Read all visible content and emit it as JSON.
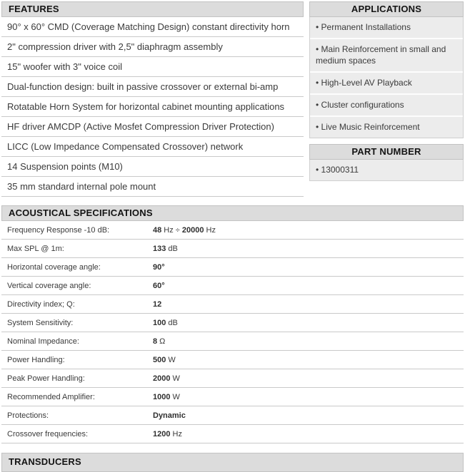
{
  "ui": {
    "bullet_glyph": "•",
    "colors": {
      "header_bg": "#dcdcdc",
      "header_border": "#c2c2c2",
      "panel_bg": "#ececec",
      "row_separator": "#c9c9c9",
      "text": "#3a3a3a"
    }
  },
  "features": {
    "title": "FEATURES",
    "items": [
      "90° x 60° CMD (Coverage Matching Design) constant directivity horn",
      "2\" compression driver with 2,5\" diaphragm assembly",
      "15\" woofer with 3\" voice coil",
      "Dual-function design: built in passive crossover or external bi-amp",
      "Rotatable Horn System for horizontal cabinet mounting applications",
      "HF driver AMCDP (Active Mosfet Compression Driver Protection)",
      "LICC (Low Impedance Compensated Crossover) network",
      "14 Suspension points (M10)",
      "35 mm standard internal pole mount"
    ]
  },
  "applications": {
    "title": "APPLICATIONS",
    "items": [
      "Permanent Installations",
      "Main Reinforcement in small and medium spaces",
      "High-Level AV Playback",
      "Cluster configurations",
      "Live Music Reinforcement"
    ]
  },
  "part_number": {
    "title": "PART NUMBER",
    "items": [
      "13000311"
    ]
  },
  "acoustical_specifications": {
    "title": "ACOUSTICAL SPECIFICATIONS",
    "rows": [
      {
        "label": "Frequency Response -10 dB:",
        "value": [
          {
            "t": "48",
            "b": true
          },
          {
            "t": " Hz ÷ ",
            "b": false
          },
          {
            "t": "20000",
            "b": true
          },
          {
            "t": " Hz",
            "b": false
          }
        ]
      },
      {
        "label": "Max SPL @ 1m:",
        "value": [
          {
            "t": "133",
            "b": true
          },
          {
            "t": " dB",
            "b": false
          }
        ]
      },
      {
        "label": "Horizontal coverage angle:",
        "value": [
          {
            "t": "90°",
            "b": true
          }
        ]
      },
      {
        "label": "Vertical coverage angle:",
        "value": [
          {
            "t": "60°",
            "b": true
          }
        ]
      },
      {
        "label": "Directivity index; Q:",
        "value": [
          {
            "t": "12",
            "b": true
          }
        ]
      },
      {
        "label": "System Sensitivity:",
        "value": [
          {
            "t": "100",
            "b": true
          },
          {
            "t": " dB",
            "b": false
          }
        ]
      },
      {
        "label": "Nominal Impedance:",
        "value": [
          {
            "t": "8",
            "b": true
          },
          {
            "t": " Ω",
            "b": false
          }
        ]
      },
      {
        "label": "Power Handling:",
        "value": [
          {
            "t": "500",
            "b": true
          },
          {
            "t": " W",
            "b": false
          }
        ]
      },
      {
        "label": "Peak Power Handling:",
        "value": [
          {
            "t": "2000",
            "b": true
          },
          {
            "t": " W",
            "b": false
          }
        ]
      },
      {
        "label": "Recommended Amplifier:",
        "value": [
          {
            "t": "1000",
            "b": true
          },
          {
            "t": " W",
            "b": false
          }
        ]
      },
      {
        "label": "Protections:",
        "value": [
          {
            "t": "Dynamic",
            "b": true
          }
        ]
      },
      {
        "label": "Crossover frequencies:",
        "value": [
          {
            "t": "1200",
            "b": true
          },
          {
            "t": " Hz",
            "b": false
          }
        ]
      }
    ]
  },
  "transducers": {
    "title": "TRANSDUCERS"
  }
}
